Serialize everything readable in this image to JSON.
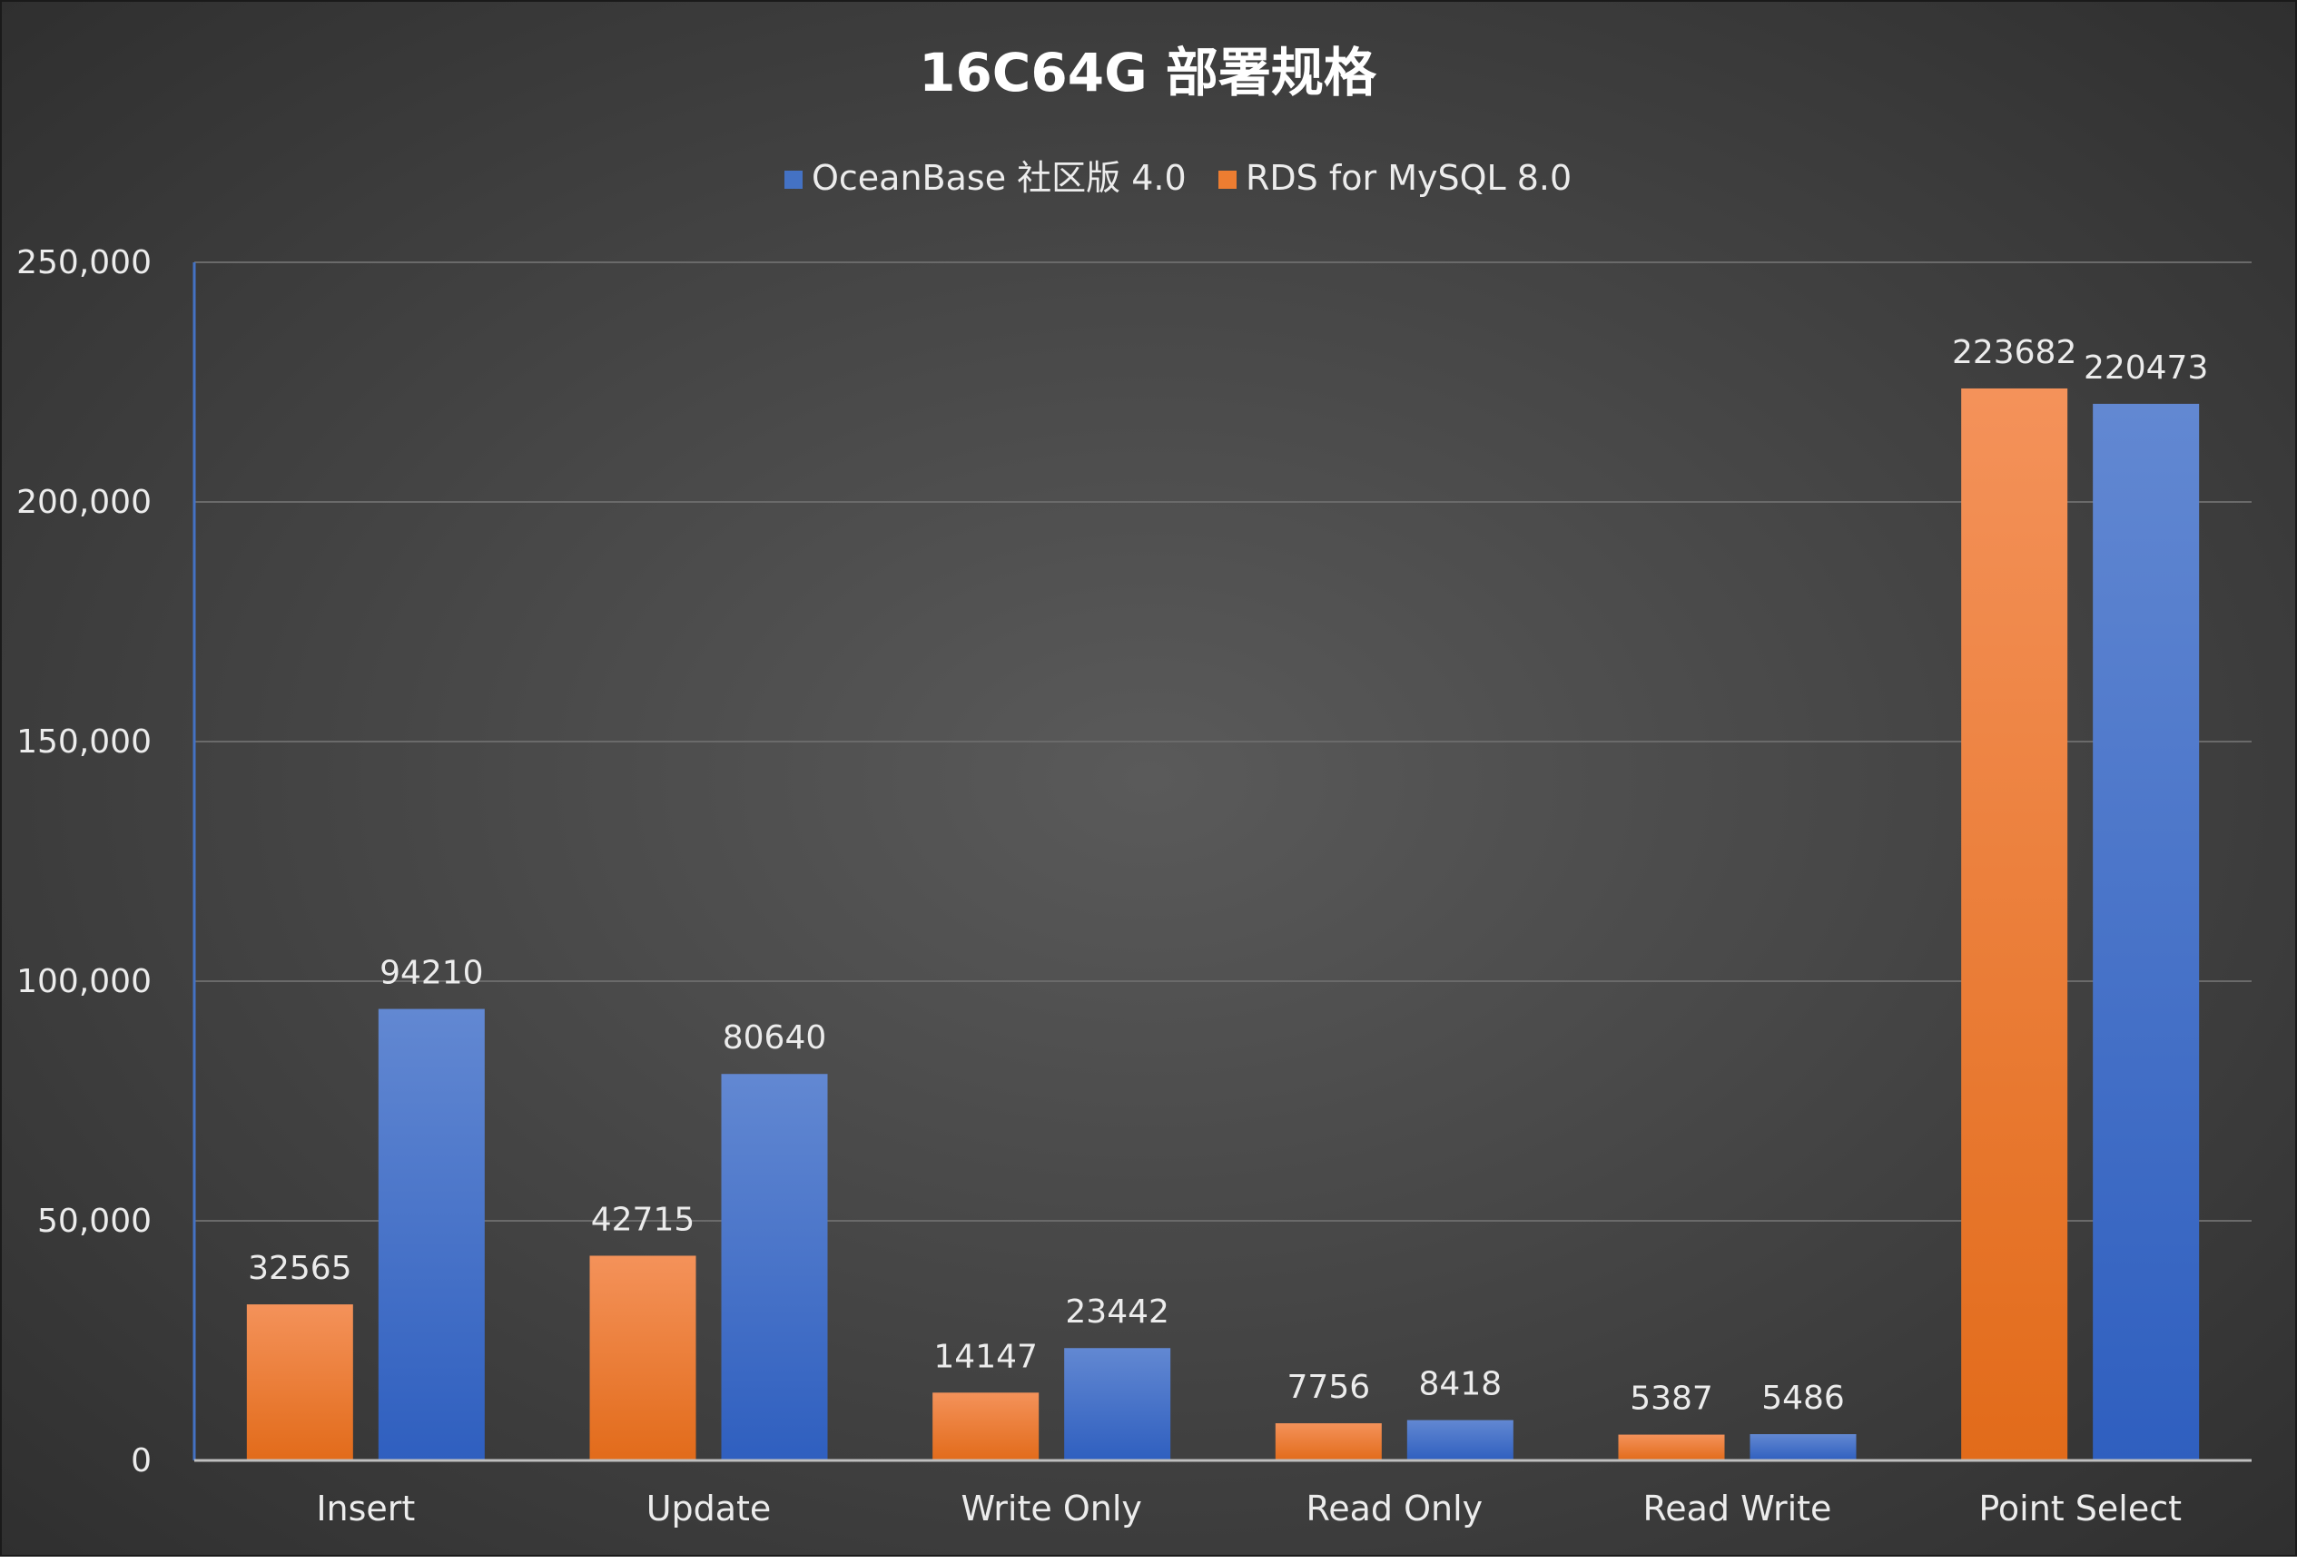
{
  "chart_data": {
    "type": "bar",
    "title": "16C64G 部署规格",
    "categories": [
      "Insert",
      "Update",
      "Write Only",
      "Read Only",
      "Read Write",
      "Point Select"
    ],
    "series": [
      {
        "name": "RDS for MySQL 8.0",
        "color": "#ED7D31",
        "values": [
          32565,
          42715,
          14147,
          7756,
          5387,
          223682
        ]
      },
      {
        "name": "OceanBase 社区版 4.0",
        "color": "#4472C4",
        "values": [
          94210,
          80640,
          23442,
          8418,
          5486,
          220473
        ]
      }
    ],
    "legend_order": [
      "OceanBase 社区版 4.0",
      "RDS for MySQL 8.0"
    ],
    "legend_position": "top",
    "ylim": [
      0,
      250000
    ],
    "yticks": [
      0,
      50000,
      100000,
      150000,
      200000,
      250000
    ],
    "ytick_labels": [
      "0",
      "50,000",
      "100,000",
      "150,000",
      "200,000",
      "250,000"
    ],
    "data_labels": true,
    "grid": true
  }
}
